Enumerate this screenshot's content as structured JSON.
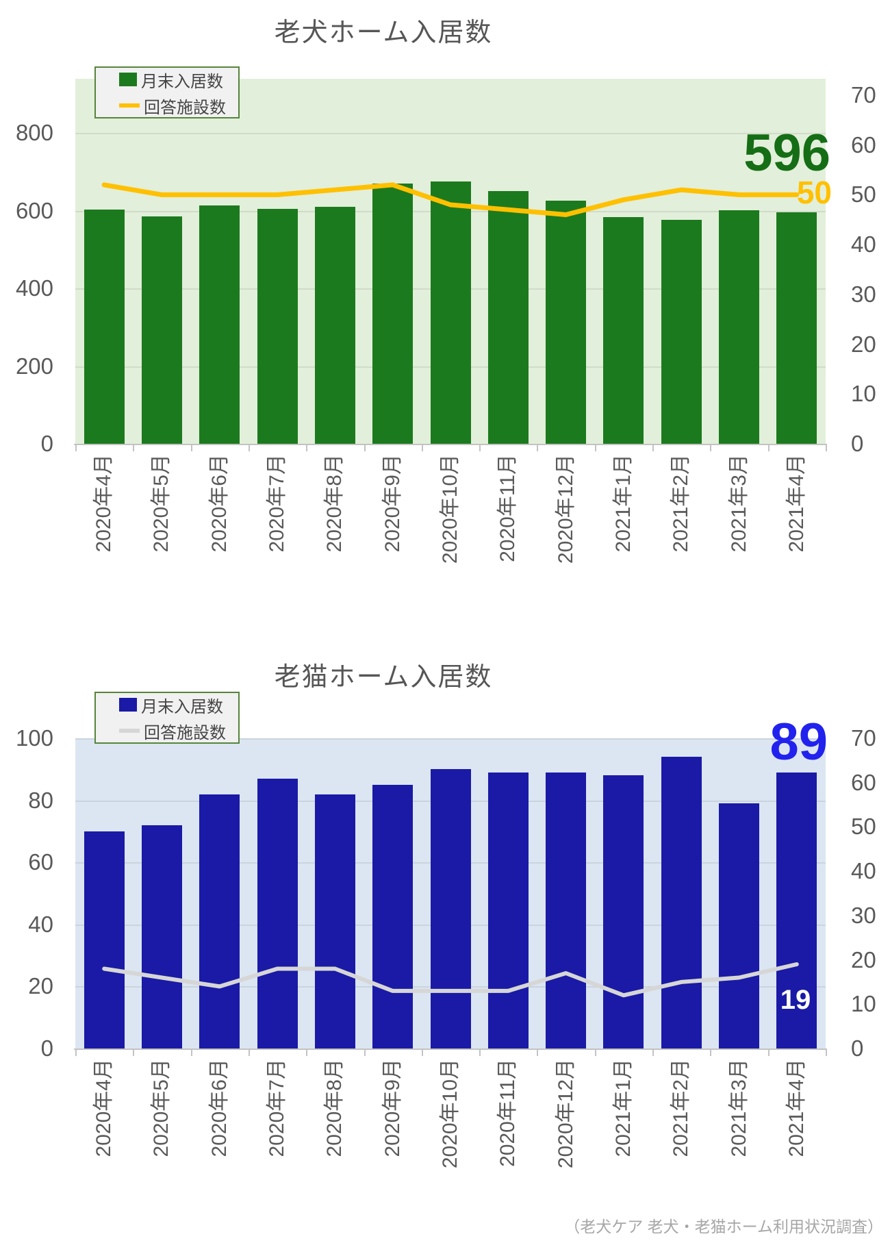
{
  "source_note": "（老犬ケア 老犬・老猫ホーム利用状況調査）",
  "chart_data": [
    {
      "type": "bar+line",
      "title": "老犬ホーム入居数",
      "categories": [
        "2020年4月",
        "2020年5月",
        "2020年6月",
        "2020年7月",
        "2020年8月",
        "2020年9月",
        "2020年10月",
        "2020年11月",
        "2020年12月",
        "2021年1月",
        "2021年2月",
        "2021年3月",
        "2021年4月"
      ],
      "series": [
        {
          "name": "月末入居数",
          "type": "bar",
          "axis": "left",
          "values": [
            603,
            585,
            613,
            605,
            611,
            671,
            676,
            650,
            626,
            583,
            576,
            601,
            596
          ]
        },
        {
          "name": "回答施設数",
          "type": "line",
          "axis": "right",
          "values": [
            52,
            50,
            50,
            50,
            51,
            52,
            48,
            47,
            46,
            49,
            51,
            50,
            50
          ]
        }
      ],
      "left_axis": {
        "ticks": [
          0,
          200,
          400,
          600,
          800
        ],
        "max": 940
      },
      "right_axis": {
        "ticks": [
          0,
          10,
          20,
          30,
          40,
          50,
          60,
          70
        ],
        "max": 73.3
      },
      "end_labels": {
        "bar": "596",
        "line": "50"
      },
      "legend_position": "top-left",
      "grid": true,
      "colors": {
        "bar": "#1c7a1e",
        "line": "#ffc000",
        "plot_bg": "#e2efda",
        "bar_label": "#156e15",
        "line_label": "#ffc000"
      }
    },
    {
      "type": "bar+line",
      "title": "老猫ホーム入居数",
      "categories": [
        "2020年4月",
        "2020年5月",
        "2020年6月",
        "2020年7月",
        "2020年8月",
        "2020年9月",
        "2020年10月",
        "2020年11月",
        "2020年12月",
        "2021年1月",
        "2021年2月",
        "2021年3月",
        "2021年4月"
      ],
      "series": [
        {
          "name": "月末入居数",
          "type": "bar",
          "axis": "left",
          "values": [
            70,
            72,
            82,
            87,
            82,
            85,
            90,
            89,
            89,
            88,
            94,
            79,
            89
          ]
        },
        {
          "name": "回答施設数",
          "type": "line",
          "axis": "right",
          "values": [
            18,
            16,
            14,
            18,
            18,
            13,
            13,
            13,
            17,
            12,
            15,
            16,
            19
          ]
        }
      ],
      "left_axis": {
        "ticks": [
          0,
          20,
          40,
          60,
          80,
          100
        ],
        "max": 100
      },
      "right_axis": {
        "ticks": [
          0,
          10,
          20,
          30,
          40,
          50,
          60,
          70
        ],
        "max": 70
      },
      "end_labels": {
        "bar": "89",
        "line": "19"
      },
      "legend_position": "top-left",
      "grid": true,
      "colors": {
        "bar": "#1a1aa6",
        "line": "#d6d6d6",
        "plot_bg": "#dbe6f2",
        "bar_label": "#2222ee",
        "line_label": "#ffffff"
      }
    }
  ]
}
